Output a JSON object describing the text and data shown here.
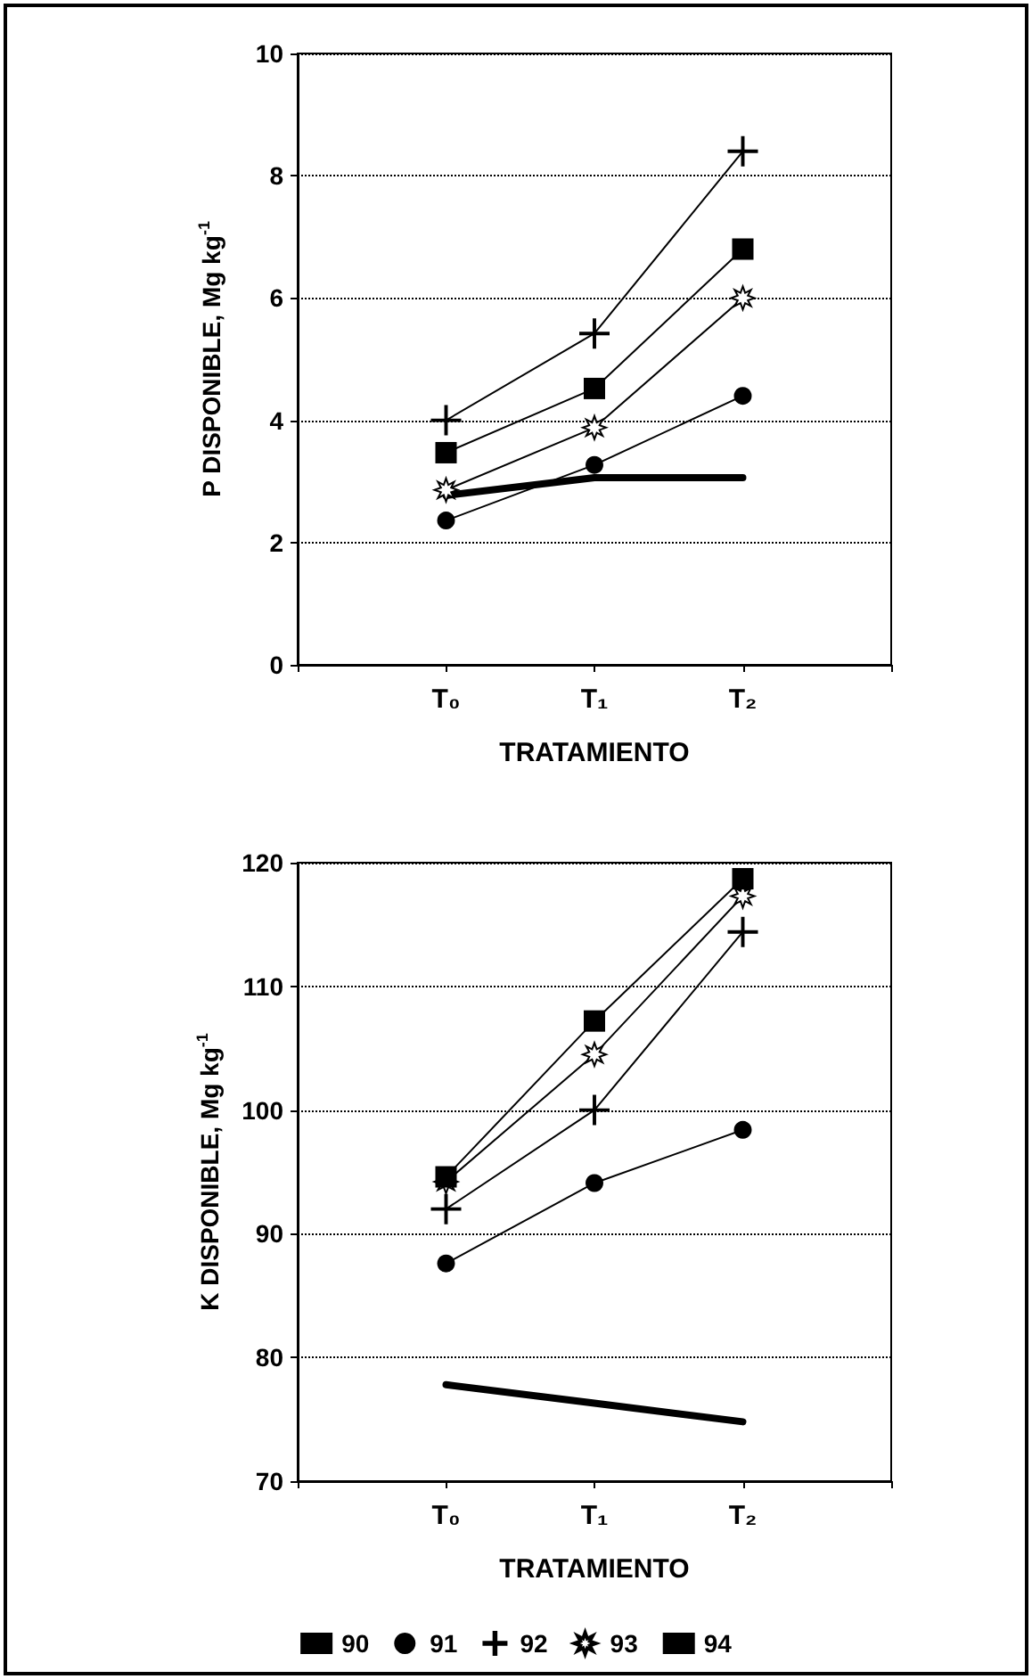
{
  "chart_data": [
    {
      "type": "line",
      "xlabel": "TRATAMIENTO",
      "ylabel": "P DISPONIBLE, Mg kg$^{-1}$",
      "categories": [
        null,
        "T₀",
        "T₁",
        "T₂",
        null
      ],
      "ylim": [
        0,
        10
      ],
      "yticks": [
        0,
        2,
        4,
        6,
        8,
        10
      ],
      "grid": "y",
      "legend": false,
      "line_style": "solid",
      "series": [
        {
          "color": "#000000",
          "marker": "none",
          "values": [
            null,
            2.77,
            3.06,
            3.06,
            null
          ]
        },
        {
          "color": "#000000",
          "marker": "circle",
          "values": [
            null,
            2.36,
            3.27,
            4.4,
            null
          ]
        },
        {
          "color": "#000000",
          "marker": "cross",
          "values": [
            null,
            4.0,
            5.42,
            8.4,
            null
          ]
        },
        {
          "color": "#000000",
          "marker": "star",
          "values": [
            null,
            2.86,
            3.88,
            6.0,
            null
          ]
        },
        {
          "color": "#000000",
          "marker": "square",
          "values": [
            null,
            3.47,
            4.52,
            6.8,
            null
          ]
        }
      ]
    },
    {
      "type": "line",
      "xlabel": "TRATAMIENTO",
      "ylabel": "K DISPONIBLE, Mg kg$^{-1}$",
      "categories": [
        null,
        "T₀",
        "T₁",
        "T₂",
        null
      ],
      "ylim": [
        70,
        120
      ],
      "yticks": [
        70,
        80,
        90,
        100,
        110,
        120
      ],
      "grid": "y",
      "legend": "bottom",
      "line_style": "solid",
      "series": [
        {
          "name": "90",
          "color": "#000000",
          "marker": "none",
          "values": [
            null,
            77.8,
            76.3,
            74.8,
            null
          ]
        },
        {
          "name": "91",
          "color": "#000000",
          "marker": "circle",
          "values": [
            null,
            87.6,
            94.1,
            98.4,
            null
          ]
        },
        {
          "name": "92",
          "color": "#000000",
          "marker": "cross",
          "values": [
            null,
            92.0,
            100.0,
            114.4,
            null
          ]
        },
        {
          "name": "93",
          "color": "#000000",
          "marker": "star",
          "values": [
            null,
            94.2,
            104.5,
            117.3,
            null
          ]
        },
        {
          "name": "94",
          "color": "#000000",
          "marker": "square",
          "values": [
            null,
            94.6,
            107.2,
            118.7,
            null
          ]
        }
      ]
    }
  ]
}
